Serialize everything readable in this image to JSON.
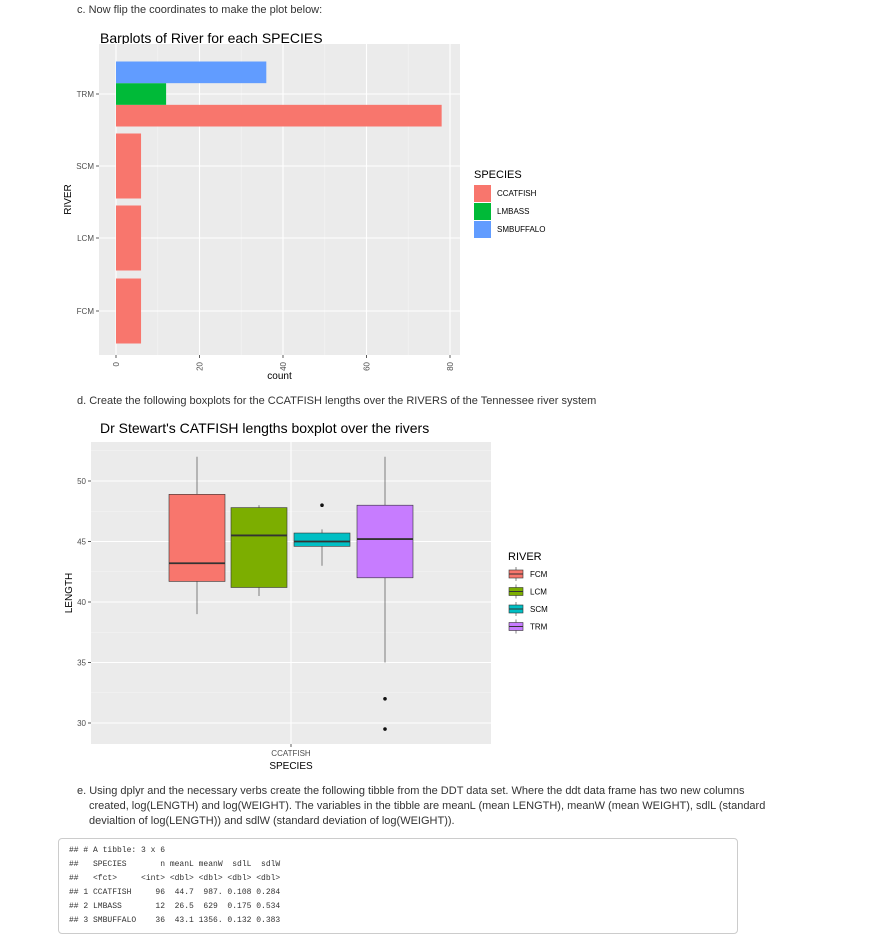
{
  "instructions": {
    "c": "c. Now flip the coordinates to make the plot below:",
    "d": "d. Create the following boxplots for the CCATFISH lengths over the RIVERS of the Tennessee river system",
    "e_line1": "e. Using dplyr and the necessary verbs create the following tibble from the DDT data set. Where the ddt data frame has two new columns",
    "e_line2": "created, log(LENGTH) and log(WEIGHT). The variables in the tibble are meanL (mean LENGTH), meanW (mean WEIGHT), sdlL (standard",
    "e_line3": "devialtion of log(LENGTH)) and sdlW (standard deviation of log(WEIGHT))."
  },
  "chart_data": [
    {
      "type": "bar",
      "orientation": "horizontal",
      "title": "Barplots of River for each SPECIES",
      "xlabel": "count",
      "ylabel": "RIVER",
      "categories": [
        "FCM",
        "LCM",
        "SCM",
        "TRM"
      ],
      "series": [
        {
          "name": "CCATFISH",
          "color": "#F8766D",
          "values": [
            6,
            6,
            6,
            78
          ]
        },
        {
          "name": "LMBASS",
          "color": "#00BA38",
          "values": [
            0,
            0,
            0,
            12
          ]
        },
        {
          "name": "SMBUFFALO",
          "color": "#619CFF",
          "values": [
            0,
            0,
            0,
            36
          ]
        }
      ],
      "xlim": [
        0,
        80
      ],
      "x_ticks": [
        "0",
        "20",
        "40",
        "60",
        "80"
      ],
      "legend": {
        "title": "SPECIES",
        "placement": "right"
      },
      "grid": true
    },
    {
      "type": "boxplot",
      "title": "Dr Stewart's CATFISH lengths boxplot over the rivers",
      "xlabel": "SPECIES",
      "ylabel": "LENGTH",
      "x_category": "CCATFISH",
      "ylim": [
        28.5,
        53.5
      ],
      "y_ticks": [
        "30",
        "35",
        "40",
        "45",
        "50"
      ],
      "boxes": [
        {
          "name": "FCM",
          "color": "#F8766D",
          "min": 39,
          "q1": 41.7,
          "median": 43.2,
          "q3": 48.9,
          "max": 52,
          "outliers": []
        },
        {
          "name": "LCM",
          "color": "#7CAE00",
          "min": 40.5,
          "q1": 41.2,
          "median": 45.5,
          "q3": 47.8,
          "max": 48,
          "outliers": []
        },
        {
          "name": "SCM",
          "color": "#00BFC4",
          "min": 43,
          "q1": 44.6,
          "median": 45,
          "q3": 45.7,
          "max": 46,
          "outliers": [
            48
          ]
        },
        {
          "name": "TRM",
          "color": "#C77CFF",
          "min": 35,
          "q1": 42,
          "median": 45.2,
          "q3": 48,
          "max": 52,
          "outliers": [
            32,
            29.5
          ]
        }
      ],
      "legend": {
        "title": "RIVER",
        "placement": "right"
      },
      "grid": true
    }
  ],
  "code_output": [
    "## # A tibble: 3 x 6",
    "##   SPECIES       n meanL meanW  sdlL  sdlW",
    "##   <fct>     <int> <dbl> <dbl> <dbl> <dbl>",
    "## 1 CCATFISH     96  44.7  987. 0.108 0.284",
    "## 2 LMBASS       12  26.5  629  0.175 0.534",
    "## 3 SMBUFFALO    36  43.1 1356. 0.132 0.383"
  ]
}
